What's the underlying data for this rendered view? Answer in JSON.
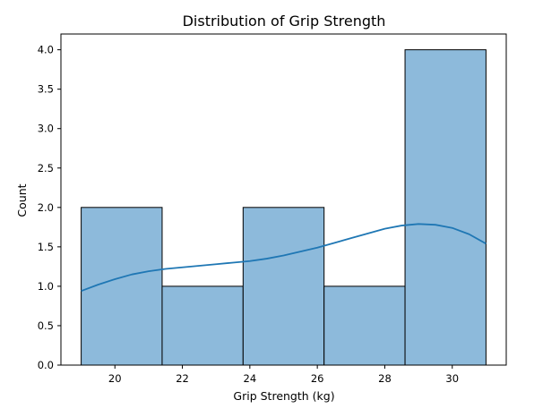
{
  "chart_data": {
    "type": "bar",
    "title": "Distribution of Grip Strength",
    "xlabel": "Grip Strength (kg)",
    "ylabel": "Count",
    "xlim": [
      18.4,
      31.6
    ],
    "ylim": [
      0,
      4.2
    ],
    "x_ticks": [
      20,
      22,
      24,
      26,
      28,
      30
    ],
    "y_ticks": [
      0.0,
      0.5,
      1.0,
      1.5,
      2.0,
      2.5,
      3.0,
      3.5,
      4.0
    ],
    "bins": [
      {
        "start": 19.0,
        "end": 21.4,
        "count": 2
      },
      {
        "start": 21.4,
        "end": 23.8,
        "count": 1
      },
      {
        "start": 23.8,
        "end": 26.2,
        "count": 2
      },
      {
        "start": 26.2,
        "end": 28.6,
        "count": 1
      },
      {
        "start": 28.6,
        "end": 31.0,
        "count": 4
      }
    ],
    "kde": {
      "x": [
        19.0,
        19.5,
        20.0,
        20.5,
        21.0,
        21.5,
        22.0,
        22.5,
        23.0,
        23.5,
        24.0,
        24.5,
        25.0,
        25.5,
        26.0,
        26.5,
        27.0,
        27.5,
        28.0,
        28.5,
        29.0,
        29.5,
        30.0,
        30.5,
        31.0
      ],
      "y": [
        0.94,
        1.02,
        1.09,
        1.15,
        1.19,
        1.22,
        1.24,
        1.26,
        1.28,
        1.3,
        1.32,
        1.35,
        1.39,
        1.44,
        1.49,
        1.55,
        1.61,
        1.67,
        1.73,
        1.77,
        1.79,
        1.78,
        1.74,
        1.66,
        1.54
      ]
    },
    "grid": false,
    "legend": "none",
    "colors": {
      "bar_fill": "#8dbadb",
      "bar_edge": "#000000",
      "kde_line": "#1f77b4",
      "axes": "#000000"
    }
  }
}
